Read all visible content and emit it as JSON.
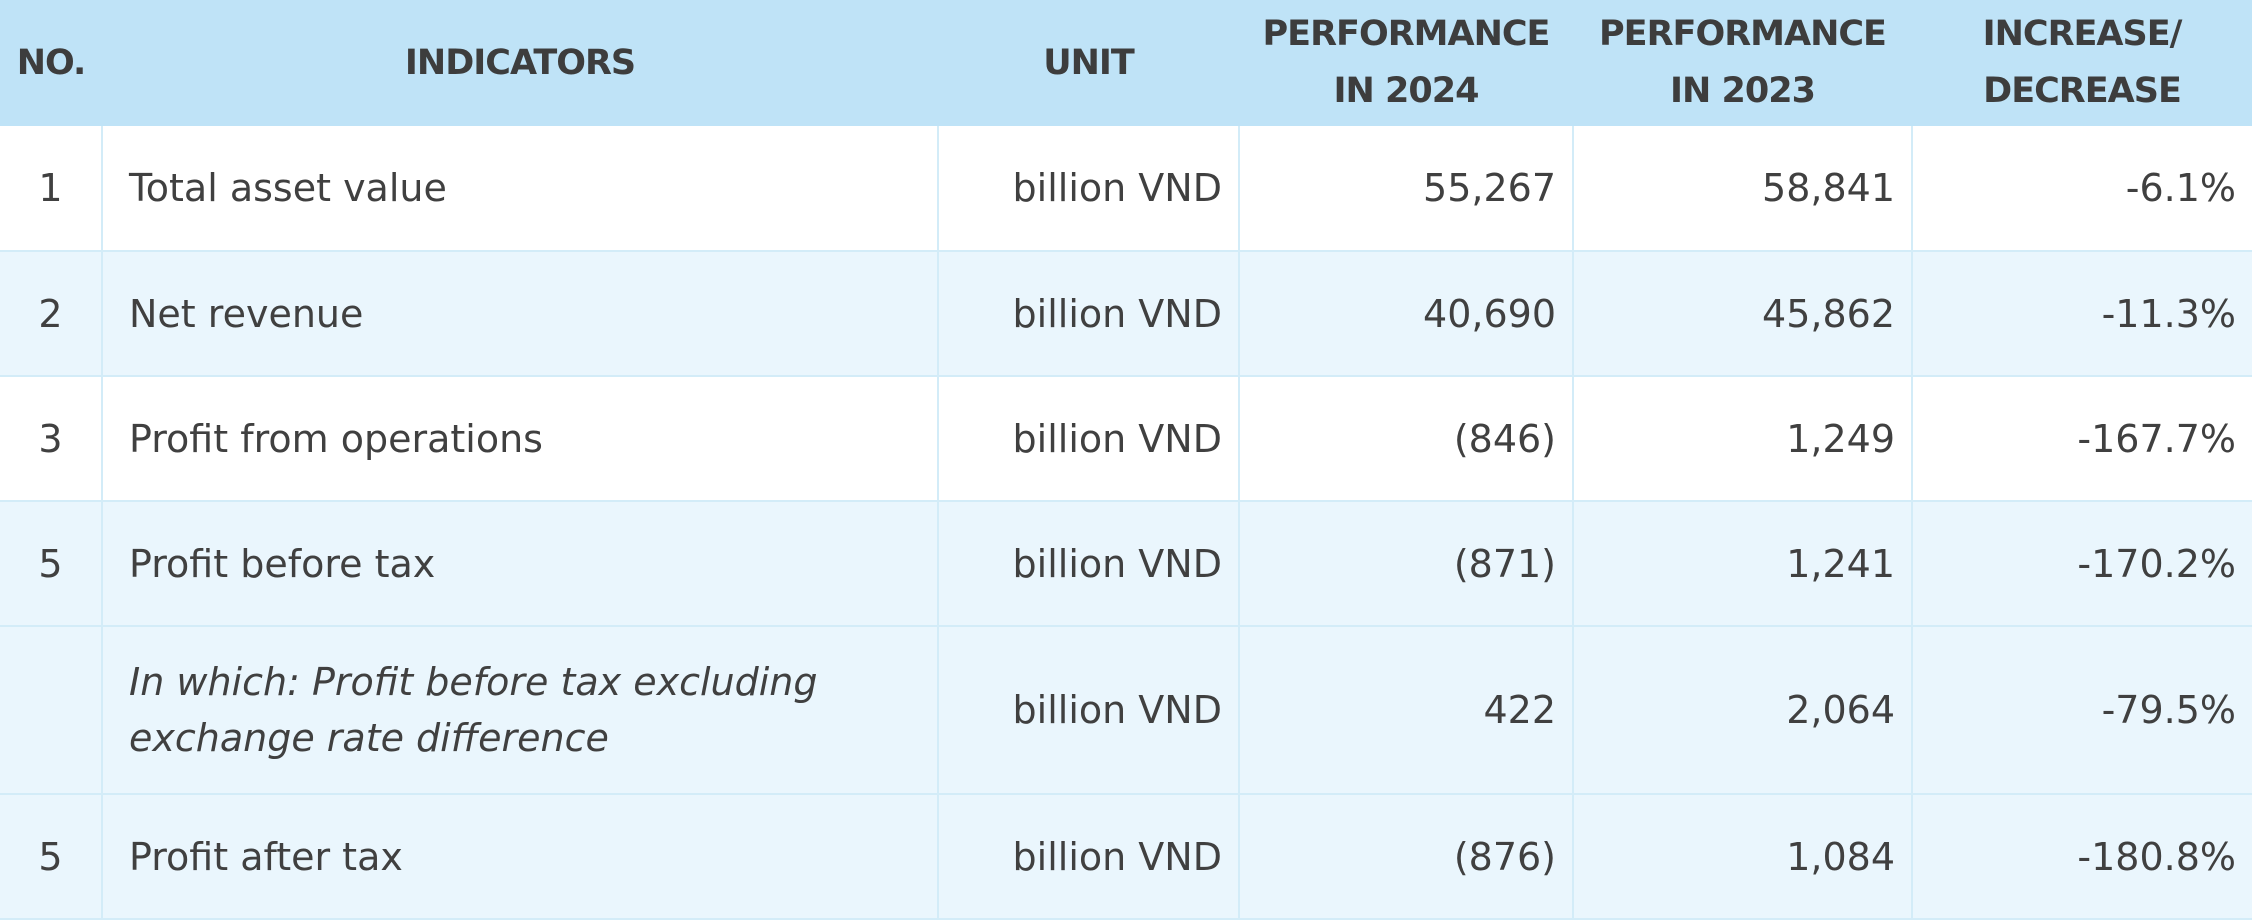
{
  "table": {
    "headers": {
      "no": "NO.",
      "indicators": "INDICATORS",
      "unit": "UNIT",
      "perf_2024_line1": "PERFORMANCE",
      "perf_2024_line2": "IN 2024",
      "perf_2023_line1": "PERFORMANCE",
      "perf_2023_line2": "IN 2023",
      "change_line1": "INCREASE/",
      "change_line2": "DECREASE"
    },
    "rows": [
      {
        "no": "1",
        "indicator": "Total asset value",
        "unit": "billion VND",
        "perf_2024": "55,267",
        "perf_2023": "58,841",
        "change": "-6.1%"
      },
      {
        "no": "2",
        "indicator": "Net revenue",
        "unit": "billion VND",
        "perf_2024": "40,690",
        "perf_2023": "45,862",
        "change": "-11.3%"
      },
      {
        "no": "3",
        "indicator": "Profit from operations",
        "unit": "billion VND",
        "perf_2024": "(846)",
        "perf_2023": "1,249",
        "change": "-167.7%"
      },
      {
        "no": "5",
        "indicator": "Profit before tax",
        "unit": "billion VND",
        "perf_2024": "(871)",
        "perf_2023": "1,241",
        "change": "-170.2%"
      },
      {
        "no": "",
        "indicator_line1": "In which: Profit before tax excluding",
        "indicator_line2": "exchange rate difference",
        "unit": "billion VND",
        "perf_2024": "422",
        "perf_2023": "2,064",
        "change": "-79.5%"
      },
      {
        "no": "5",
        "indicator": "Profit after tax",
        "unit": "billion VND",
        "perf_2024": "(876)",
        "perf_2023": "1,084",
        "change": "-180.8%"
      }
    ]
  }
}
